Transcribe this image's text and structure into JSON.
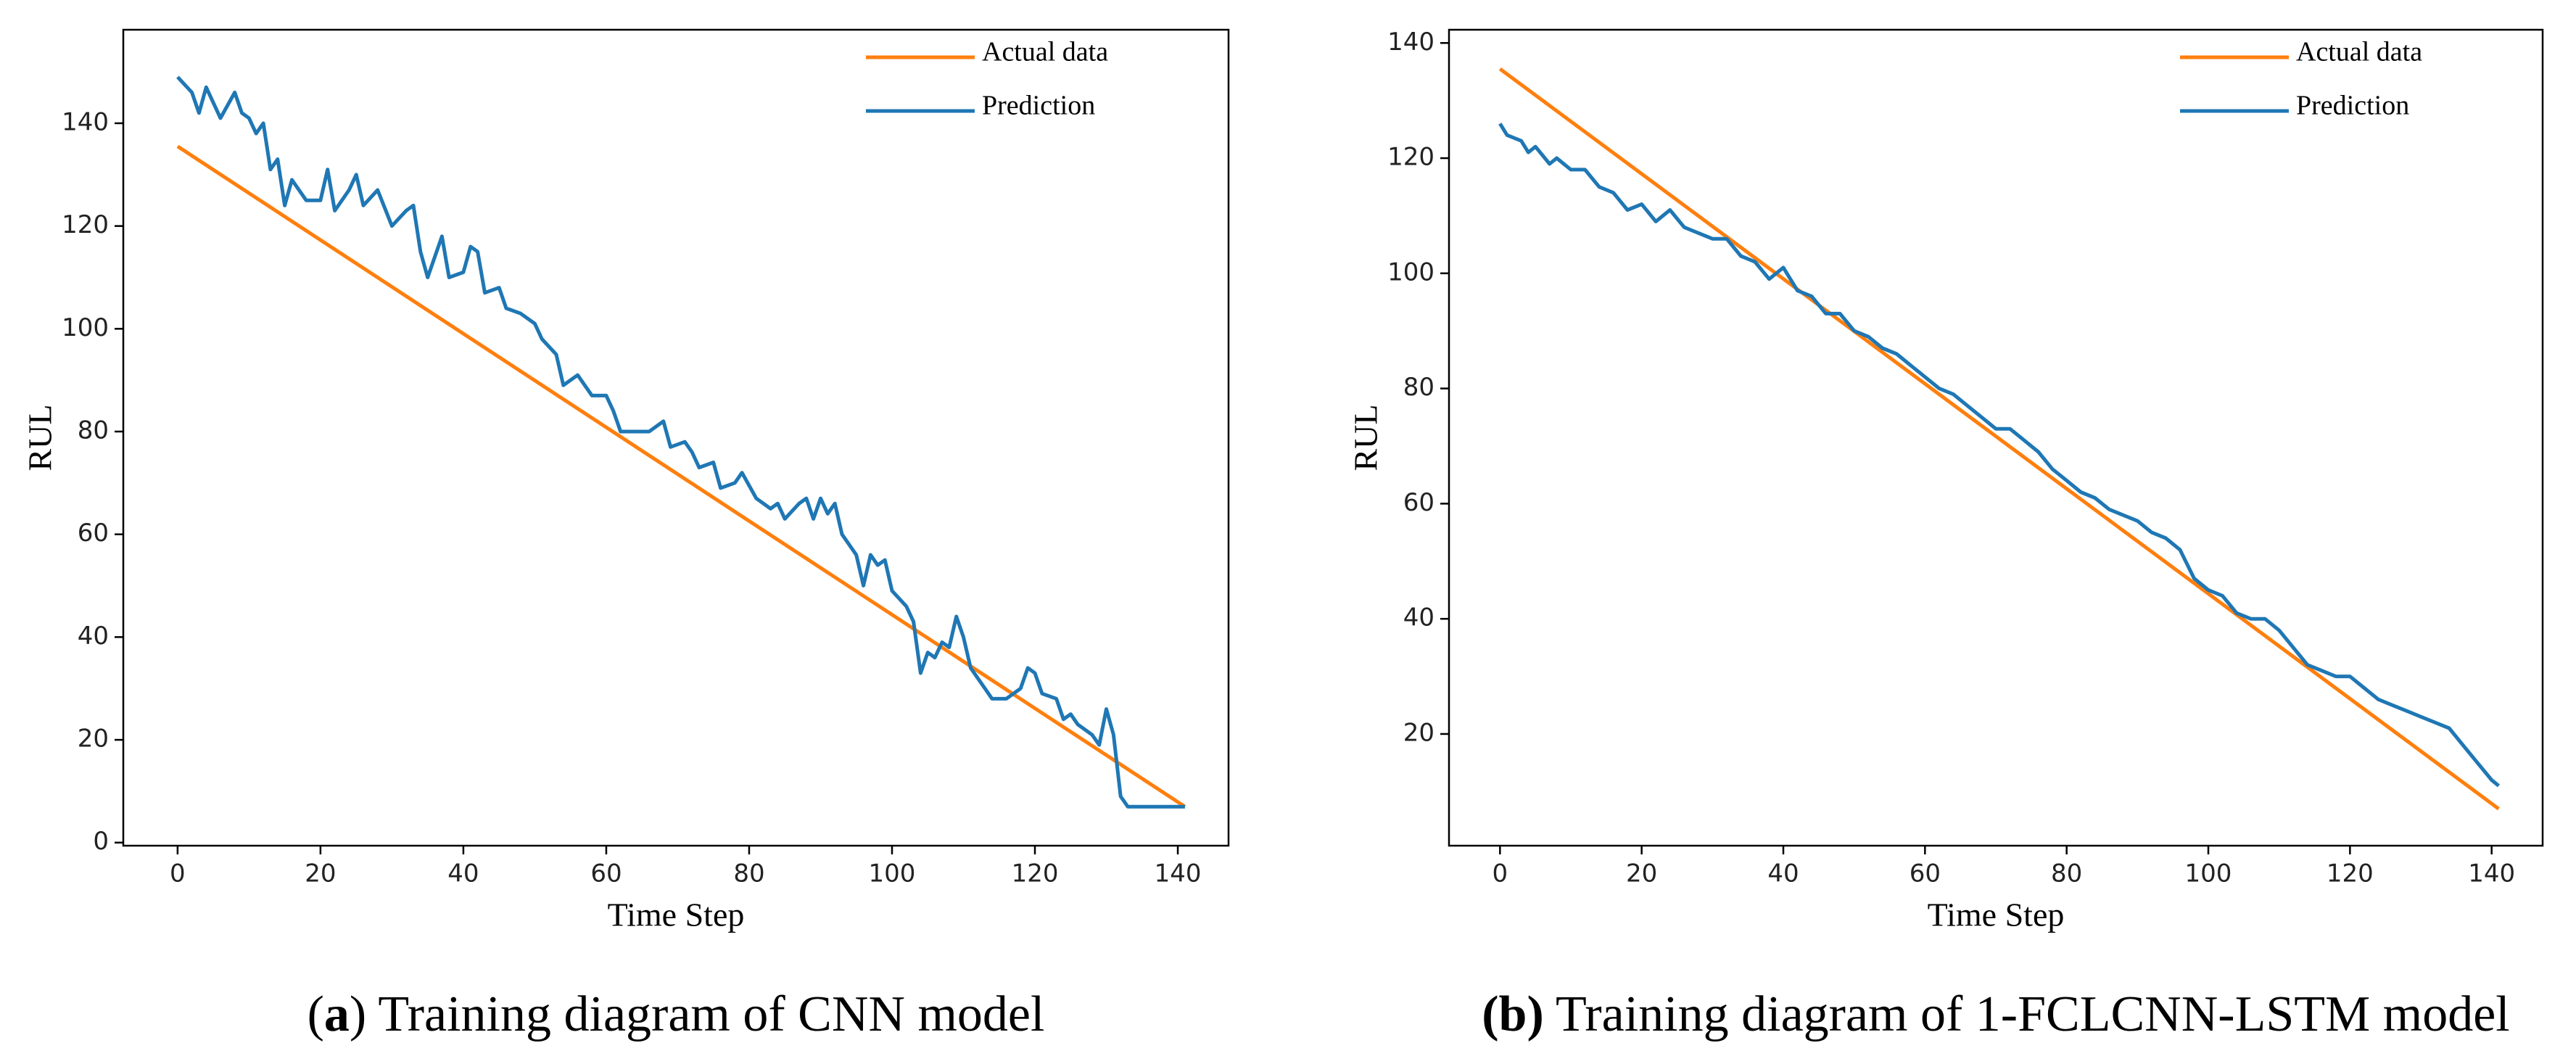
{
  "chart_data": [
    {
      "type": "line",
      "xlabel": "Time Step",
      "ylabel": "RUL",
      "legend": "upper right",
      "caption_parts": [
        {
          "text": "(",
          "bold": false
        },
        {
          "text": "a",
          "bold": true
        },
        {
          "text": ") Training diagram of CNN model",
          "bold": false
        }
      ],
      "xlim": [
        -7.6,
        147.1
      ],
      "ylim": [
        -0.6,
        158.2
      ],
      "xticks": [
        0,
        20,
        40,
        60,
        80,
        100,
        120,
        140
      ],
      "yticks": [
        0,
        20,
        40,
        60,
        80,
        100,
        120,
        140
      ],
      "series": [
        {
          "name": "Actual data",
          "color": "#ff7f0e",
          "x": [
            0,
            141
          ],
          "values": [
            135.5,
            7
          ]
        },
        {
          "name": "Prediction",
          "color": "#1f77b4",
          "x": [
            0,
            2,
            3,
            4,
            6,
            8,
            9,
            10,
            11,
            12,
            13,
            14,
            15,
            16,
            18,
            20,
            21,
            22,
            24,
            25,
            26,
            28,
            30,
            32,
            33,
            34,
            35,
            37,
            38,
            40,
            41,
            42,
            43,
            45,
            46,
            48,
            50,
            51,
            53,
            54,
            56,
            58,
            60,
            61,
            62,
            64,
            66,
            68,
            69,
            71,
            72,
            73,
            75,
            76,
            78,
            79,
            81,
            83,
            84,
            85,
            87,
            88,
            89,
            90,
            91,
            92,
            93,
            95,
            96,
            97,
            98,
            99,
            100,
            102,
            103,
            104,
            105,
            106,
            107,
            108,
            109,
            110,
            111,
            113,
            114,
            116,
            118,
            119,
            120,
            121,
            123,
            124,
            125,
            126,
            128,
            129,
            130,
            131,
            132,
            133,
            141
          ],
          "values": [
            149,
            146,
            142,
            147,
            141,
            146,
            142,
            141,
            138,
            140,
            131,
            133,
            124,
            129,
            125,
            125,
            131,
            123,
            127,
            130,
            124,
            127,
            120,
            123,
            124,
            115,
            110,
            118,
            110,
            111,
            116,
            115,
            107,
            108,
            104,
            103,
            101,
            98,
            95,
            89,
            91,
            87,
            87,
            84,
            80,
            80,
            80,
            82,
            77,
            78,
            76,
            73,
            74,
            69,
            70,
            72,
            67,
            65,
            66,
            63,
            66,
            67,
            63,
            67,
            64,
            66,
            60,
            56,
            50,
            56,
            54,
            55,
            49,
            46,
            43,
            33,
            37,
            36,
            39,
            38,
            44,
            40,
            34,
            30,
            28,
            28,
            30,
            34,
            33,
            29,
            28,
            24,
            25,
            23,
            21,
            19,
            26,
            21,
            9,
            7,
            7
          ]
        }
      ]
    },
    {
      "type": "line",
      "xlabel": "Time Step",
      "ylabel": "RUL",
      "legend": "upper right",
      "caption_parts": [
        {
          "text": "(b)",
          "bold": true
        },
        {
          "text": " Training diagram of 1-FCLCNN-LSTM model",
          "bold": false
        }
      ],
      "xlim": [
        -7.2,
        147.2
      ],
      "ylim": [
        0.6,
        142.3
      ],
      "xticks": [
        0,
        20,
        40,
        60,
        80,
        100,
        120,
        140
      ],
      "yticks": [
        20,
        40,
        60,
        80,
        100,
        120,
        140
      ],
      "series": [
        {
          "name": "Actual data",
          "color": "#ff7f0e",
          "x": [
            0,
            141
          ],
          "values": [
            135.5,
            7
          ]
        },
        {
          "name": "Prediction",
          "color": "#1f77b4",
          "x": [
            0,
            1,
            3,
            4,
            5,
            7,
            8,
            10,
            12,
            14,
            16,
            18,
            20,
            22,
            24,
            26,
            28,
            30,
            32,
            34,
            36,
            38,
            40,
            42,
            44,
            46,
            48,
            50,
            52,
            54,
            56,
            58,
            60,
            62,
            64,
            66,
            68,
            70,
            72,
            74,
            76,
            78,
            80,
            82,
            84,
            86,
            88,
            90,
            92,
            94,
            96,
            98,
            100,
            102,
            104,
            106,
            108,
            110,
            112,
            114,
            116,
            118,
            120,
            122,
            124,
            126,
            128,
            130,
            132,
            134,
            136,
            138,
            140,
            141
          ],
          "values": [
            126,
            124,
            123,
            121,
            122,
            119,
            120,
            118,
            118,
            115,
            114,
            111,
            112,
            109,
            111,
            108,
            107,
            106,
            106,
            103,
            102,
            99,
            101,
            97,
            96,
            93,
            93,
            90,
            89,
            87,
            86,
            84,
            82,
            80,
            79,
            77,
            75,
            73,
            73,
            71,
            69,
            66,
            64,
            62,
            61,
            59,
            58,
            57,
            55,
            54,
            52,
            47,
            45,
            44,
            41,
            40,
            40,
            38,
            35,
            32,
            31,
            30,
            30,
            28,
            26,
            25,
            24,
            23,
            22,
            21,
            18,
            15,
            12,
            11
          ]
        }
      ]
    }
  ]
}
